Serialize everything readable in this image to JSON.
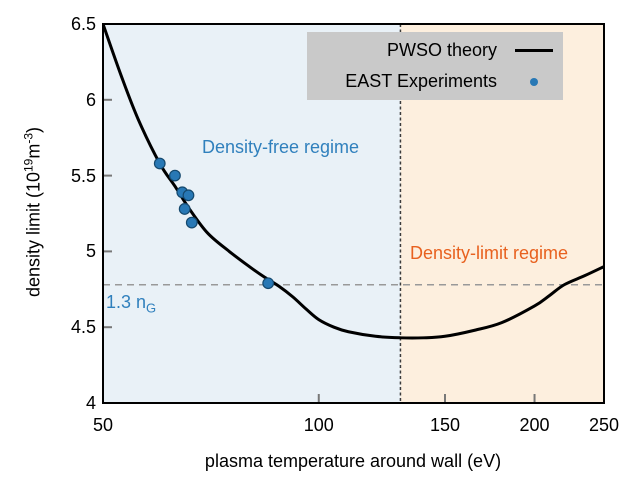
{
  "chart_data": {
    "type": "line",
    "title": "",
    "xlabel": "plasma temperature around wall (eV)",
    "ylabel": "density limit (10^19 m^-3)",
    "x_scale": "log",
    "xlim": [
      50,
      250
    ],
    "ylim": [
      4.0,
      6.5
    ],
    "x_ticks": [
      "50",
      "100",
      "150",
      "200",
      "250"
    ],
    "x_tick_values": [
      50,
      100,
      150,
      200,
      250
    ],
    "y_ticks": [
      "6.5",
      "6",
      "5.5",
      "5",
      "4.5",
      "4"
    ],
    "y_tick_values": [
      6.5,
      6.0,
      5.5,
      5.0,
      4.5,
      4.0
    ],
    "grid": false,
    "legend_position": "top-right",
    "series": [
      {
        "name": "PWSO theory",
        "type": "line",
        "color": "#000000",
        "points": [
          [
            50,
            6.5
          ],
          [
            53,
            6.16
          ],
          [
            56,
            5.87
          ],
          [
            60,
            5.58
          ],
          [
            63,
            5.43
          ],
          [
            66,
            5.28
          ],
          [
            70,
            5.12
          ],
          [
            75,
            5.0
          ],
          [
            80,
            4.9
          ],
          [
            84,
            4.83
          ],
          [
            88,
            4.77
          ],
          [
            92,
            4.7
          ],
          [
            96,
            4.62
          ],
          [
            100,
            4.55
          ],
          [
            105,
            4.5
          ],
          [
            110,
            4.47
          ],
          [
            120,
            4.44
          ],
          [
            130,
            4.43
          ],
          [
            140,
            4.43
          ],
          [
            150,
            4.44
          ],
          [
            165,
            4.48
          ],
          [
            180,
            4.53
          ],
          [
            200,
            4.64
          ],
          [
            210,
            4.71
          ],
          [
            220,
            4.78
          ],
          [
            235,
            4.84
          ],
          [
            250,
            4.9
          ]
        ]
      },
      {
        "name": "EAST Experiments",
        "type": "scatter",
        "color": "#2878b5",
        "points": [
          [
            60,
            5.58
          ],
          [
            63,
            5.5
          ],
          [
            64.5,
            5.39
          ],
          [
            65.8,
            5.37
          ],
          [
            65,
            5.28
          ],
          [
            66.5,
            5.19
          ],
          [
            85,
            4.79
          ]
        ]
      }
    ],
    "regions": [
      {
        "label": "Density-free regime",
        "from": 50,
        "to": 130,
        "bg": "#e9f1f7",
        "label_color": "#3080bd"
      },
      {
        "label": "Density-limit regime",
        "from": 130,
        "to": 250,
        "bg": "#fdefde",
        "label_color": "#e8611f"
      }
    ],
    "reference_lines": [
      {
        "axis": "x",
        "value": 130,
        "style": "dotted",
        "color": "#3c3c3c",
        "label": ""
      },
      {
        "axis": "y",
        "value": 4.78,
        "style": "dashed",
        "color": "#999999",
        "label": "1.3 n_G",
        "label_color": "#3080bd"
      }
    ],
    "colors": {
      "curve": "#000000",
      "scatter_fill": "#2878b5",
      "scatter_edge": "#15496e",
      "border": "#000000",
      "tick": "#777777"
    }
  },
  "legend": {
    "bg": "#c9c9c9",
    "items": [
      {
        "label": "PWSO theory",
        "marker": "line",
        "color": "#000000"
      },
      {
        "label": "EAST Experiments",
        "marker": "dot",
        "color": "#2878b5"
      }
    ]
  },
  "labels": {
    "free_regime": "Density-free regime",
    "limit_regime": "Density-limit regime",
    "ng_pre": "1.3 n",
    "ng_sub": "G",
    "xlabel": "plasma temperature around wall (eV)",
    "ylabel_pre": "density limit (10",
    "ylabel_sup1": "19",
    "ylabel_mid": "m",
    "ylabel_sup2": "-3",
    "ylabel_post": ")"
  }
}
